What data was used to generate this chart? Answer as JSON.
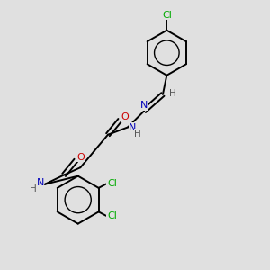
{
  "background_color": "#e0e0e0",
  "bond_color": "#000000",
  "atom_colors": {
    "N": "#0000bb",
    "O": "#cc0000",
    "Cl": "#00aa00",
    "H": "#555555"
  },
  "figsize": [
    3.0,
    3.0
  ],
  "dpi": 100,
  "xlim": [
    0,
    10
  ],
  "ylim": [
    0,
    10
  ]
}
